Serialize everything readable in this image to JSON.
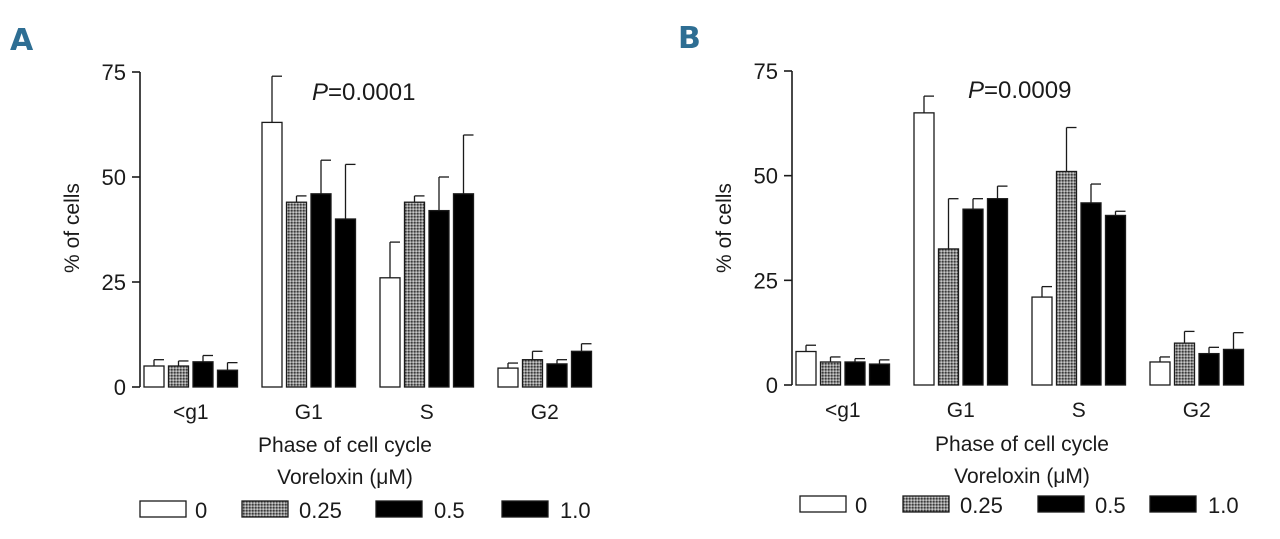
{
  "legend_title": "Voreloxin (μM)",
  "legend": [
    {
      "label": "0",
      "fill": "#ffffff"
    },
    {
      "label": "0.25",
      "fill": "#777777"
    },
    {
      "label": "0.5",
      "fill": "#000000"
    },
    {
      "label": "1.0",
      "fill": "#000000"
    }
  ],
  "chart_data": [
    {
      "panel": "A",
      "type": "bar",
      "title": "",
      "annotation_italic": "P",
      "annotation_rest": "=0.0001",
      "xlabel": "Phase of cell cycle",
      "ylabel": "% of cells",
      "ylim": [
        0,
        75
      ],
      "yticks": [
        "0",
        "25",
        "50",
        "75"
      ],
      "categories": [
        "<g1",
        "G1",
        "S",
        "G2"
      ],
      "series": [
        {
          "name": "0",
          "values": [
            5,
            63,
            26,
            4.5
          ],
          "errors": [
            1.5,
            11,
            8.5,
            1.2
          ]
        },
        {
          "name": "0.25",
          "values": [
            5,
            44,
            44,
            6.5
          ],
          "errors": [
            1.2,
            1.5,
            1.5,
            2
          ]
        },
        {
          "name": "0.5",
          "values": [
            6,
            46,
            42,
            5.5
          ],
          "errors": [
            1.5,
            8,
            8,
            1
          ]
        },
        {
          "name": "1.0",
          "values": [
            4,
            40,
            46,
            8.5
          ],
          "errors": [
            1.8,
            13,
            14,
            1.8
          ]
        }
      ]
    },
    {
      "panel": "B",
      "type": "bar",
      "title": "",
      "annotation_italic": "P",
      "annotation_rest": "=0.0009",
      "xlabel": "Phase of cell cycle",
      "ylabel": "% of cells",
      "ylim": [
        0,
        75
      ],
      "yticks": [
        "0",
        "25",
        "50",
        "75"
      ],
      "categories": [
        "<g1",
        "G1",
        "S",
        "G2"
      ],
      "series": [
        {
          "name": "0",
          "values": [
            8,
            65,
            21,
            5.5
          ],
          "errors": [
            1.5,
            4,
            2.5,
            1.2
          ]
        },
        {
          "name": "0.25",
          "values": [
            5.5,
            32.5,
            51,
            10
          ],
          "errors": [
            1.2,
            12,
            10.5,
            2.8
          ]
        },
        {
          "name": "0.5",
          "values": [
            5.5,
            42,
            43.5,
            7.5
          ],
          "errors": [
            0.8,
            2.5,
            4.5,
            1.5
          ]
        },
        {
          "name": "1.0",
          "values": [
            5,
            44.5,
            40.5,
            8.5
          ],
          "errors": [
            1,
            3,
            1,
            4
          ]
        }
      ]
    }
  ]
}
